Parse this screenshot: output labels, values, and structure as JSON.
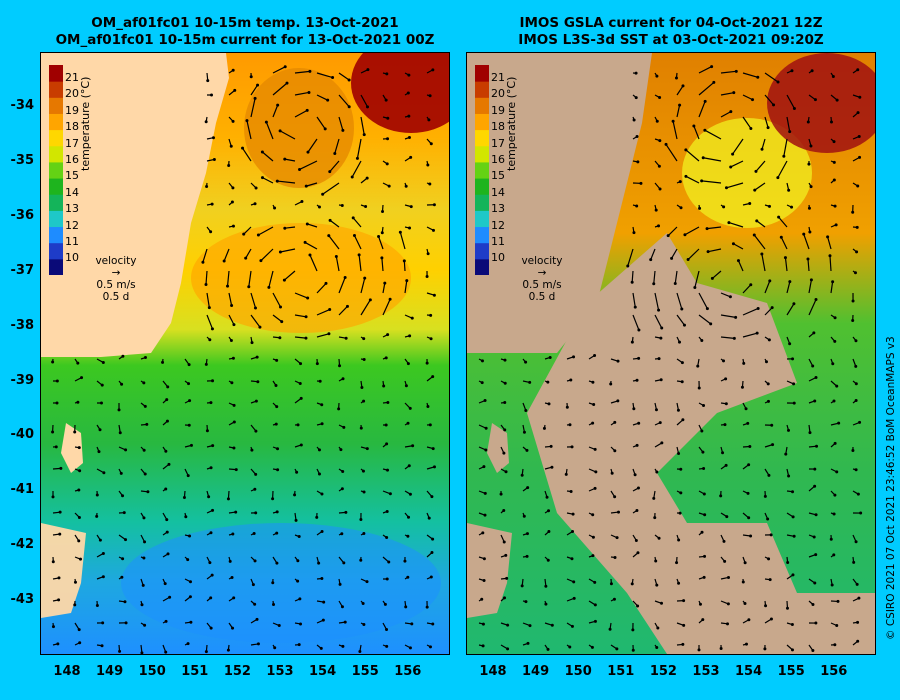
{
  "titles": {
    "left_line1": "OM_af01fc01 10-15m temp. 13-Oct-2021",
    "left_line2": "OM_af01fc01 10-15m current for 13-Oct-2021 00Z",
    "right_line1": "IMOS GSLA current for 04-Oct-2021 12Z",
    "right_line2": "IMOS L3S-3d SST at 03-Oct-2021 09:20Z"
  },
  "axes": {
    "lat_labels": [
      "-34",
      "-35",
      "-36",
      "-37",
      "-38",
      "-39",
      "-40",
      "-41",
      "-42",
      "-43"
    ],
    "lon_labels": [
      "148",
      "149",
      "150",
      "151",
      "152",
      "153",
      "154",
      "155",
      "156"
    ]
  },
  "colorbar": {
    "label": "temperature (°C)",
    "ticks": [
      "21",
      "20",
      "19",
      "18",
      "17",
      "16",
      "15",
      "14",
      "13",
      "12",
      "11",
      "10"
    ],
    "colors": [
      "#0a0a78",
      "#1e3cc8",
      "#1e8cff",
      "#1ec8c8",
      "#14b45a",
      "#1eb41e",
      "#64d214",
      "#d2e600",
      "#ffd700",
      "#ffa500",
      "#e67800",
      "#c83c00",
      "#a00000"
    ]
  },
  "velocity_key": {
    "title": "velocity",
    "speed": "0.5 m/s",
    "time": "0.5 d"
  },
  "credit": "© CSIRO 2021  07 Oct 2021 23:46:52 BoM OceanMAPS v3",
  "colors": {
    "land": "#ffd8a8",
    "land_gray": "#c8a88c",
    "background": "#00ccff"
  }
}
